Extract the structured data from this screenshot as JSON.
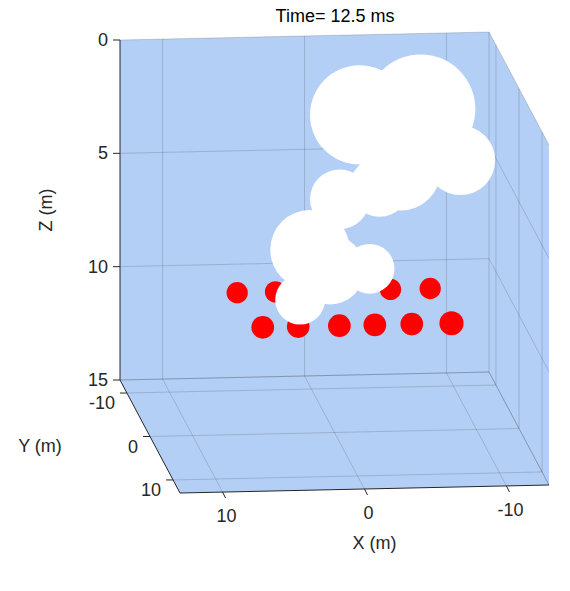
{
  "chart_data": {
    "type": "scatter3d",
    "title": "Time= 12.5 ms",
    "x_label": "X (m)",
    "y_label": "Y (m)",
    "z_label": "Z (m)",
    "xlim": [
      -13,
      13
    ],
    "ylim": [
      -13,
      13
    ],
    "zlim": [
      0,
      15
    ],
    "xticks": [
      -10,
      0,
      10
    ],
    "yticks": [
      -10,
      0,
      10
    ],
    "zticks": [
      0,
      5,
      10,
      15
    ],
    "grid": true,
    "series": [
      {
        "color": "#ff0000",
        "x": [
          5.8,
          3.1,
          -5.0,
          -7.8,
          5.3,
          2.8,
          -0.1,
          -2.6,
          -5.2,
          -8.0
        ],
        "y": [
          -6.5,
          -6.5,
          -6.5,
          -6.5,
          1.5,
          1.5,
          1.5,
          1.5,
          1.5,
          1.5
        ],
        "z": [
          10,
          10,
          10,
          10,
          10,
          10,
          10,
          10,
          10,
          10
        ],
        "size": [
          1.5,
          1.5,
          1.5,
          1.5,
          1.6,
          1.6,
          1.6,
          1.6,
          1.6,
          1.7
        ]
      },
      {
        "color": "#ffffff",
        "x": [
          -6.4,
          -2.1,
          -9.2,
          -5.0,
          -0.7,
          1.4,
          0.0,
          2.1,
          -2.8,
          -3.5
        ],
        "y": [
          -2,
          -2,
          -2,
          -2,
          -2,
          -2,
          -2,
          -2,
          -2,
          -2
        ],
        "z": [
          1.2,
          1.4,
          3.5,
          3.9,
          5.1,
          7.3,
          8.2,
          9.5,
          8.2,
          4.6
        ],
        "size": [
          7.7,
          7.0,
          4.9,
          5.6,
          4.2,
          5.6,
          4.9,
          3.5,
          3.5,
          4.2
        ]
      }
    ]
  }
}
